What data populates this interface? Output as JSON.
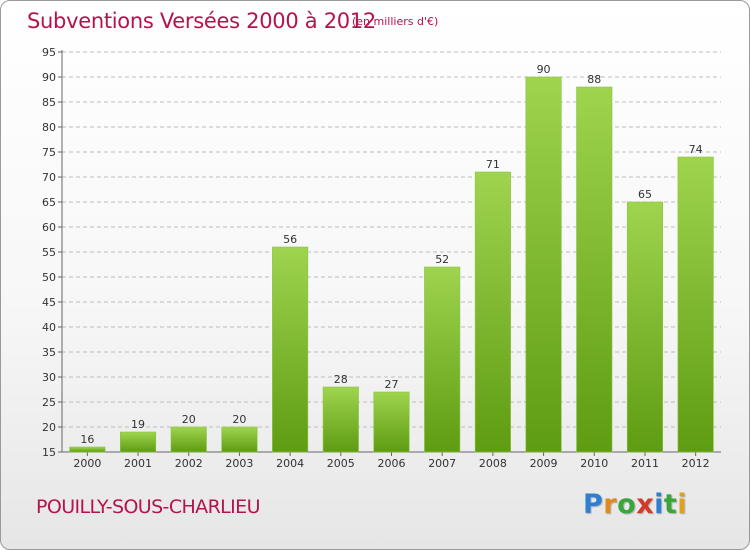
{
  "header": {
    "title": "Subventions Versées 2000 à 2012",
    "unit": "(en milliers d'€)"
  },
  "footer": {
    "commune": "POUILLY-SOUS-CHARLIEU",
    "logo": [
      "P",
      "r",
      "o",
      "x",
      "i",
      "t",
      "i"
    ]
  },
  "colors": {
    "title": "#b5124e",
    "bar_top": "#9fd44e",
    "bar_bottom": "#5e9c12",
    "grid": "#bdbdbd"
  },
  "chart_data": {
    "type": "bar",
    "title": "Subventions Versées 2000 à 2012",
    "subtitle": "(en milliers d'€)",
    "categories": [
      "2000",
      "2001",
      "2002",
      "2003",
      "2004",
      "2005",
      "2006",
      "2007",
      "2008",
      "2009",
      "2010",
      "2011",
      "2012"
    ],
    "values": [
      16,
      19,
      20,
      20,
      56,
      28,
      27,
      52,
      71,
      90,
      88,
      65,
      74
    ],
    "ylim": [
      15,
      95
    ],
    "yticks": [
      15,
      20,
      25,
      30,
      35,
      40,
      45,
      50,
      55,
      60,
      65,
      70,
      75,
      80,
      85,
      90,
      95
    ],
    "grid": true,
    "data_labels": true,
    "legend": "none"
  }
}
